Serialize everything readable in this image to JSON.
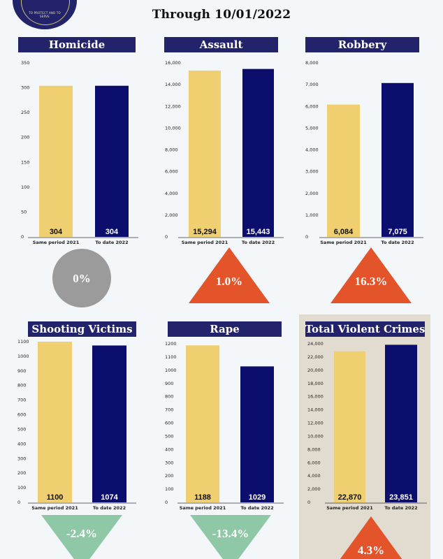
{
  "header": {
    "subtitle": "Through 10/01/2022",
    "seal_motto": "TO PROTECT AND TO SERVE"
  },
  "colors": {
    "series_2021": "#f0cf71",
    "series_2022": "#0c0e6e",
    "header_bg": "#23236b",
    "up": "#e4542a",
    "down": "#8fc8a6",
    "flat": "#9b9b9b",
    "highlight_panel": "#e2dcd0"
  },
  "chart_data": [
    {
      "type": "bar",
      "id": "homicide",
      "title": "Homicide",
      "categories": [
        "Same period 2021",
        "To date 2022"
      ],
      "values": [
        304,
        304
      ],
      "value_labels": [
        "304",
        "304"
      ],
      "ylim": [
        0,
        350
      ],
      "yticks": [
        0,
        50,
        100,
        150,
        200,
        250,
        300,
        350
      ],
      "ytick_labels": [
        "0",
        "50",
        "100",
        "150",
        "200",
        "250",
        "300",
        "350"
      ],
      "change": "0%",
      "change_dir": "flat"
    },
    {
      "type": "bar",
      "id": "assault",
      "title": "Assault",
      "categories": [
        "Same period 2021",
        "To date 2022"
      ],
      "values": [
        15294,
        15443
      ],
      "value_labels": [
        "15,294",
        "15,443"
      ],
      "ylim": [
        0,
        16000
      ],
      "yticks": [
        0,
        2000,
        4000,
        6000,
        8000,
        10000,
        12000,
        14000,
        16000
      ],
      "ytick_labels": [
        "0",
        "2,000",
        "4,000",
        "6,000",
        "8,000",
        "10,000",
        "12,000",
        "14,000",
        "16,000"
      ],
      "change": "1.0%",
      "change_dir": "up"
    },
    {
      "type": "bar",
      "id": "robbery",
      "title": "Robbery",
      "categories": [
        "Same period 2021",
        "To date 2022"
      ],
      "values": [
        6084,
        7075
      ],
      "value_labels": [
        "6,084",
        "7,075"
      ],
      "ylim": [
        0,
        8000
      ],
      "yticks": [
        0,
        1000,
        2000,
        3000,
        4000,
        5000,
        6000,
        7000,
        8000
      ],
      "ytick_labels": [
        "0",
        "1,000",
        "2,000",
        "3,000",
        "4,000",
        "5,000",
        "6,000",
        "7,000",
        "8,000"
      ],
      "change": "16.3%",
      "change_dir": "up"
    },
    {
      "type": "bar",
      "id": "shooting",
      "title": "Shooting Victims",
      "categories": [
        "Same period 2021",
        "To date 2022"
      ],
      "values": [
        1100,
        1074
      ],
      "value_labels": [
        "1100",
        "1074"
      ],
      "ylim": [
        0,
        1100
      ],
      "yticks": [
        0,
        100,
        200,
        300,
        400,
        500,
        600,
        700,
        800,
        900,
        1000,
        1100
      ],
      "ytick_labels": [
        "0",
        "100",
        "200",
        "300",
        "400",
        "500",
        "600",
        "700",
        "800",
        "900",
        "1000",
        "1100"
      ],
      "change": "-2.4%",
      "change_dir": "down"
    },
    {
      "type": "bar",
      "id": "rape",
      "title": "Rape",
      "categories": [
        "Same period 2021",
        "To date 2022"
      ],
      "values": [
        1188,
        1029
      ],
      "value_labels": [
        "1188",
        "1029"
      ],
      "ylim": [
        0,
        1200
      ],
      "yticks": [
        0,
        100,
        200,
        300,
        400,
        500,
        600,
        700,
        800,
        900,
        1000,
        1100,
        1200
      ],
      "ytick_labels": [
        "0",
        "100",
        "200",
        "300",
        "400",
        "500",
        "600",
        "700",
        "800",
        "900",
        "1000",
        "1100",
        "1200"
      ],
      "change": "-13.4%",
      "change_dir": "down"
    },
    {
      "type": "bar",
      "id": "total",
      "title": "Total Violent Crimes",
      "categories": [
        "Same period 2021",
        "To date 2022"
      ],
      "values": [
        22870,
        23851
      ],
      "value_labels": [
        "22,870",
        "23,851"
      ],
      "ylim": [
        0,
        24000
      ],
      "yticks": [
        0,
        2000,
        4000,
        6000,
        8000,
        10000,
        12000,
        14000,
        16000,
        18000,
        20000,
        22000,
        24000
      ],
      "ytick_labels": [
        "0",
        "2,000",
        "4,000",
        "6,000",
        "8,000",
        "10,000",
        "12,000",
        "14,000",
        "16,000",
        "18,000",
        "20,000",
        "22,000",
        "24,000"
      ],
      "change": "4.3%",
      "change_dir": "up"
    }
  ]
}
